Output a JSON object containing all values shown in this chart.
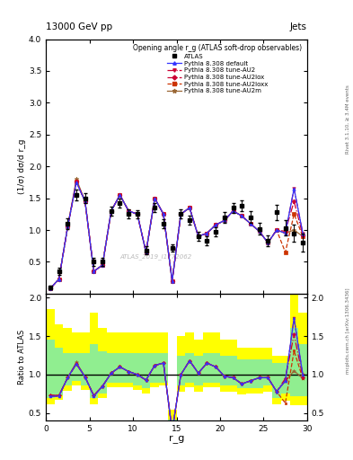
{
  "title_top": "13000 GeV pp",
  "title_right": "Jets",
  "plot_title": "Opening angle r_g (ATLAS soft-drop observables)",
  "xlabel": "r_g",
  "ylabel_main": "(1/σ) dσ/d r_g",
  "ylabel_ratio": "Ratio to ATLAS",
  "right_label_top": "Rivet 3.1.10, ≥ 3.4M events",
  "right_label_bot": "mcplots.cern.ch [arXiv:1306.3436]",
  "watermark": "ATLAS_2019_I1772062",
  "xlim": [
    0,
    30
  ],
  "ylim_main": [
    0,
    4
  ],
  "ylim_ratio": [
    0.4,
    2.05
  ],
  "yticks_main": [
    0.5,
    1.0,
    1.5,
    2.0,
    2.5,
    3.0,
    3.5,
    4.0
  ],
  "yticks_ratio": [
    0.5,
    1.0,
    1.5,
    2.0
  ],
  "xticks": [
    0,
    5,
    10,
    15,
    20,
    25,
    30
  ],
  "atlas_x": [
    0.5,
    1.5,
    2.5,
    3.5,
    4.5,
    5.5,
    6.5,
    7.5,
    8.5,
    9.5,
    10.5,
    11.5,
    12.5,
    13.5,
    14.5,
    15.5,
    16.5,
    17.5,
    18.5,
    19.5,
    20.5,
    21.5,
    22.5,
    23.5,
    24.5,
    25.5,
    26.5,
    27.5,
    28.5,
    29.5
  ],
  "atlas_y": [
    0.1,
    0.35,
    1.1,
    1.55,
    1.5,
    0.5,
    0.5,
    1.3,
    1.42,
    1.25,
    1.25,
    0.68,
    1.35,
    1.1,
    0.72,
    1.25,
    1.15,
    0.9,
    0.83,
    0.97,
    1.2,
    1.35,
    1.38,
    1.2,
    1.02,
    0.83,
    1.28,
    1.03,
    0.95,
    0.8
  ],
  "atlas_yerr": [
    0.03,
    0.05,
    0.08,
    0.08,
    0.08,
    0.06,
    0.06,
    0.07,
    0.07,
    0.07,
    0.06,
    0.06,
    0.07,
    0.07,
    0.06,
    0.07,
    0.07,
    0.07,
    0.07,
    0.07,
    0.08,
    0.08,
    0.09,
    0.09,
    0.09,
    0.09,
    0.12,
    0.12,
    0.14,
    0.14
  ],
  "mc_x": [
    0.5,
    1.5,
    2.5,
    3.5,
    4.5,
    5.5,
    6.5,
    7.5,
    8.5,
    9.5,
    10.5,
    11.5,
    12.5,
    13.5,
    14.5,
    15.5,
    16.5,
    17.5,
    18.5,
    19.5,
    20.5,
    21.5,
    22.5,
    23.5,
    24.5,
    25.5,
    26.5,
    27.5,
    28.5,
    29.5
  ],
  "default_y": [
    0.08,
    0.23,
    1.05,
    1.75,
    1.45,
    0.35,
    0.45,
    1.3,
    1.55,
    1.3,
    1.25,
    0.65,
    1.5,
    1.25,
    0.2,
    1.25,
    1.35,
    0.9,
    0.95,
    1.08,
    1.15,
    1.3,
    1.22,
    1.1,
    0.98,
    0.8,
    1.0,
    0.95,
    1.65,
    0.95
  ],
  "au2_y": [
    0.08,
    0.23,
    1.05,
    1.75,
    1.45,
    0.35,
    0.45,
    1.3,
    1.55,
    1.3,
    1.25,
    0.65,
    1.5,
    1.25,
    0.2,
    1.25,
    1.35,
    0.9,
    0.95,
    1.08,
    1.15,
    1.3,
    1.22,
    1.1,
    0.98,
    0.8,
    1.0,
    0.95,
    1.65,
    0.95
  ],
  "au2lox_y": [
    0.08,
    0.23,
    1.05,
    1.76,
    1.45,
    0.35,
    0.45,
    1.3,
    1.55,
    1.3,
    1.25,
    0.65,
    1.5,
    1.25,
    0.2,
    1.25,
    1.35,
    0.9,
    0.95,
    1.08,
    1.15,
    1.3,
    1.22,
    1.1,
    0.98,
    0.8,
    1.0,
    0.98,
    1.45,
    0.92
  ],
  "au2loxx_y": [
    0.08,
    0.23,
    1.05,
    1.76,
    1.45,
    0.35,
    0.45,
    1.3,
    1.55,
    1.3,
    1.25,
    0.65,
    1.5,
    1.25,
    0.2,
    1.25,
    1.35,
    0.9,
    0.95,
    1.08,
    1.15,
    1.3,
    1.22,
    1.1,
    0.98,
    0.8,
    1.0,
    0.65,
    1.25,
    0.9
  ],
  "au2m_y": [
    0.08,
    0.23,
    1.05,
    1.8,
    1.45,
    0.35,
    0.45,
    1.3,
    1.55,
    1.3,
    1.25,
    0.65,
    1.5,
    1.25,
    0.2,
    1.25,
    1.35,
    0.9,
    0.95,
    1.08,
    1.15,
    1.3,
    1.22,
    1.1,
    0.98,
    0.8,
    1.0,
    0.95,
    1.0,
    0.9
  ],
  "ratio_default_y": [
    0.72,
    0.72,
    0.96,
    1.14,
    0.97,
    0.72,
    0.85,
    1.02,
    1.1,
    1.04,
    1.0,
    0.93,
    1.12,
    1.15,
    0.27,
    1.0,
    1.18,
    1.02,
    1.15,
    1.1,
    0.98,
    0.96,
    0.88,
    0.92,
    0.96,
    0.96,
    0.78,
    0.92,
    1.73,
    1.0
  ],
  "ratio_au2_y": [
    0.72,
    0.72,
    0.96,
    1.14,
    0.97,
    0.72,
    0.85,
    1.02,
    1.1,
    1.04,
    1.0,
    0.93,
    1.12,
    1.15,
    0.27,
    1.0,
    1.18,
    1.02,
    1.15,
    1.1,
    0.98,
    0.96,
    0.88,
    0.92,
    0.96,
    0.96,
    0.78,
    0.92,
    1.73,
    1.0
  ],
  "ratio_au2lox_y": [
    0.73,
    0.73,
    0.96,
    1.14,
    0.97,
    0.73,
    0.85,
    1.02,
    1.1,
    1.04,
    1.0,
    0.93,
    1.12,
    1.15,
    0.27,
    1.0,
    1.18,
    1.02,
    1.15,
    1.1,
    0.98,
    0.96,
    0.88,
    0.92,
    0.96,
    0.96,
    0.78,
    0.95,
    1.52,
    0.97
  ],
  "ratio_au2loxx_y": [
    0.73,
    0.73,
    0.96,
    1.14,
    0.97,
    0.73,
    0.85,
    1.02,
    1.1,
    1.04,
    1.0,
    0.93,
    1.12,
    1.15,
    0.27,
    1.0,
    1.18,
    1.02,
    1.15,
    1.1,
    0.98,
    0.96,
    0.88,
    0.92,
    0.96,
    0.96,
    0.78,
    0.63,
    1.31,
    0.95
  ],
  "ratio_au2m_y": [
    0.73,
    0.73,
    0.96,
    1.16,
    0.97,
    0.73,
    0.85,
    1.02,
    1.1,
    1.04,
    1.0,
    0.93,
    1.12,
    1.15,
    0.27,
    1.0,
    1.18,
    1.02,
    1.15,
    1.1,
    0.98,
    0.96,
    0.88,
    0.92,
    0.96,
    0.96,
    0.78,
    0.92,
    1.05,
    0.95
  ],
  "band_yellow_lo": [
    0.62,
    0.67,
    0.79,
    0.86,
    0.8,
    0.62,
    0.7,
    0.84,
    0.84,
    0.84,
    0.8,
    0.76,
    0.84,
    0.86,
    0.2,
    0.78,
    0.84,
    0.78,
    0.84,
    0.84,
    0.78,
    0.78,
    0.74,
    0.76,
    0.76,
    0.78,
    0.62,
    0.66,
    0.6,
    0.6
  ],
  "band_yellow_hi": [
    1.85,
    1.65,
    1.6,
    1.55,
    1.55,
    1.8,
    1.6,
    1.55,
    1.55,
    1.55,
    1.55,
    1.55,
    1.55,
    1.55,
    0.55,
    1.5,
    1.55,
    1.45,
    1.55,
    1.55,
    1.45,
    1.45,
    1.35,
    1.35,
    1.35,
    1.35,
    1.25,
    1.25,
    2.1,
    1.8
  ],
  "band_green_lo": [
    0.7,
    0.73,
    0.86,
    0.92,
    0.86,
    0.7,
    0.76,
    0.9,
    0.9,
    0.9,
    0.86,
    0.82,
    0.9,
    0.9,
    0.22,
    0.86,
    0.9,
    0.86,
    0.9,
    0.9,
    0.86,
    0.86,
    0.82,
    0.82,
    0.82,
    0.86,
    0.7,
    0.76,
    0.72,
    0.72
  ],
  "band_green_hi": [
    1.45,
    1.35,
    1.28,
    1.28,
    1.28,
    1.4,
    1.3,
    1.28,
    1.28,
    1.28,
    1.28,
    1.28,
    1.28,
    1.28,
    0.42,
    1.25,
    1.28,
    1.25,
    1.28,
    1.28,
    1.25,
    1.25,
    1.2,
    1.2,
    1.2,
    1.2,
    1.15,
    1.15,
    1.6,
    1.4
  ],
  "color_default": "#3333ff",
  "color_au2": "#cc0033",
  "color_au2lox": "#cc0033",
  "color_au2loxx": "#cc3300",
  "color_au2m": "#996633",
  "color_atlas": "#000000"
}
